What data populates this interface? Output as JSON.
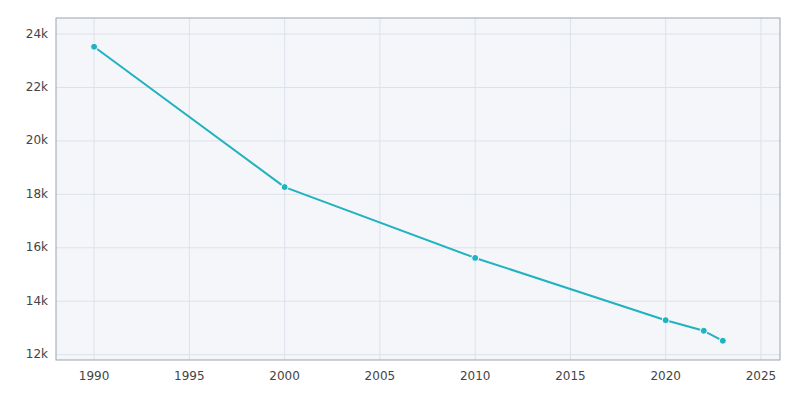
{
  "chart_data": {
    "type": "line",
    "x": [
      1990,
      2000,
      2010,
      2020,
      2022,
      2023
    ],
    "values": [
      23523,
      18272,
      15620,
      13290,
      12893,
      12520
    ],
    "color": "#20B2C0",
    "marker": "circle",
    "xlim": [
      1988,
      2026
    ],
    "ylim": [
      11800,
      24600
    ],
    "xticks": [
      1990,
      1995,
      2000,
      2005,
      2010,
      2015,
      2020,
      2025
    ],
    "yticks": [
      {
        "value": 12000,
        "label": "12k"
      },
      {
        "value": 14000,
        "label": "14k"
      },
      {
        "value": 16000,
        "label": "16k"
      },
      {
        "value": 18000,
        "label": "18k"
      },
      {
        "value": 20000,
        "label": "20k"
      },
      {
        "value": 22000,
        "label": "22k"
      },
      {
        "value": 24000,
        "label": "24k"
      }
    ],
    "grid": true
  }
}
